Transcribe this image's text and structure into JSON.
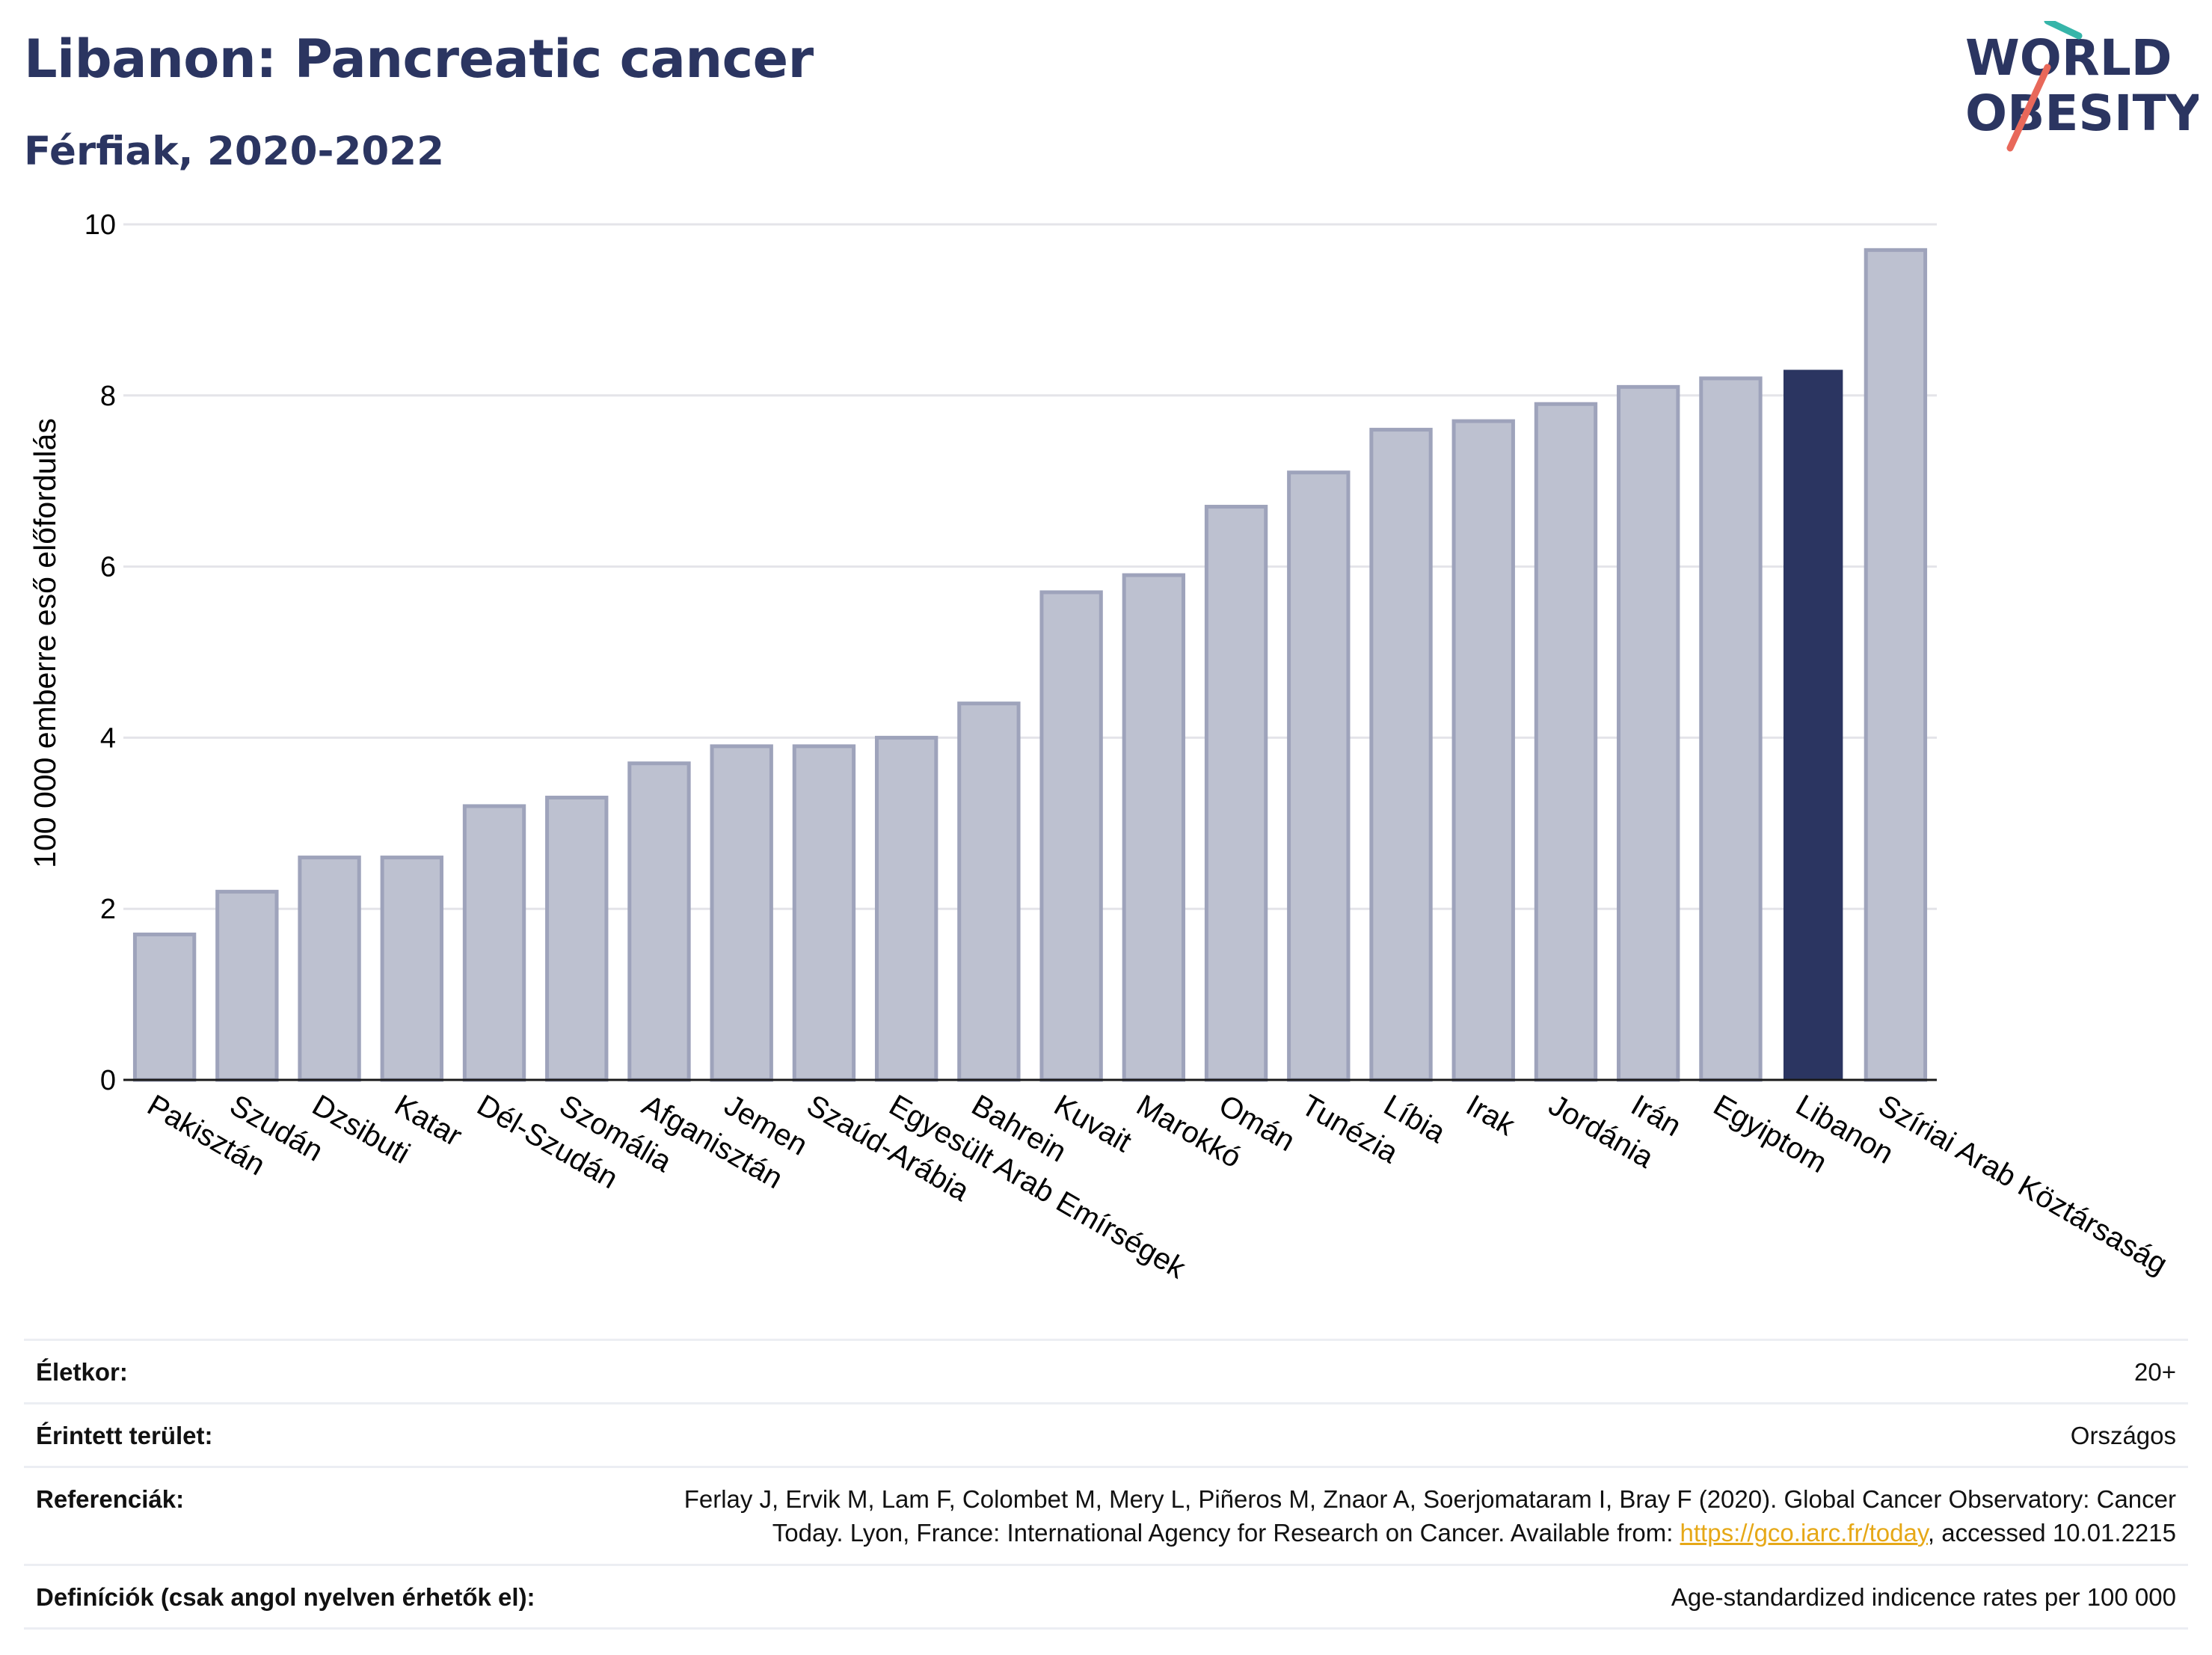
{
  "title": "Libanon: Pancreatic cancer",
  "subtitle": "Férfiak, 2020-2022",
  "logo": {
    "line1": "WORLD",
    "line2": "OBESITY",
    "accent_teal": "#36b5a9",
    "accent_red": "#e8685a",
    "text_color": "#2b3561"
  },
  "colors": {
    "bar": "#bdc1d0",
    "bar_edge": "#9ea3bb",
    "highlight": "#2b3561"
  },
  "chart_data": {
    "type": "bar",
    "ylabel": "100 000 emberre eső előfordulás",
    "ylim": [
      0,
      10
    ],
    "yticks": [
      "0",
      "2",
      "4",
      "6",
      "8",
      "10"
    ],
    "grid": true,
    "highlight": "Libanon",
    "categories": [
      "Pakisztán",
      "Szudán",
      "Dzsibuti",
      "Katar",
      "Dél-Szudán",
      "Szomália",
      "Afganisztán",
      "Jemen",
      "Szaúd-Arábia",
      "Egyesült Arab Emírségek",
      "Bahrein",
      "Kuvait",
      "Marokkó",
      "Omán",
      "Tunézia",
      "Líbia",
      "Irak",
      "Jordánia",
      "Irán",
      "Egyiptom",
      "Libanon",
      "Szíriai Arab Köztársaság"
    ],
    "values": [
      1.7,
      2.2,
      2.6,
      2.6,
      3.2,
      3.3,
      3.7,
      3.9,
      3.9,
      4.0,
      4.4,
      5.7,
      5.9,
      6.7,
      7.1,
      7.6,
      7.7,
      7.9,
      8.1,
      8.2,
      8.3,
      9.7
    ]
  },
  "info": {
    "age_label": "Életkor:",
    "age_value": "20+",
    "area_label": "Érintett terület:",
    "area_value": "Országos",
    "ref_label": "Referenciák:",
    "ref_text_1": "Ferlay J, Ervik M, Lam F, Colombet M, Mery L, Piñeros M, Znaor A, Soerjomataram I, Bray F (2020). Global Cancer Observatory: Cancer",
    "ref_text_2": "Today. Lyon, France: International Agency for Research on Cancer. Available from: ",
    "ref_link": "https://gco.iarc.fr/today",
    "ref_text_3": ", accessed 10.01.2215",
    "def_label": "Definíciók (csak angol nyelven érhetők el):",
    "def_value": "Age-standardized indicence rates per 100 000"
  }
}
